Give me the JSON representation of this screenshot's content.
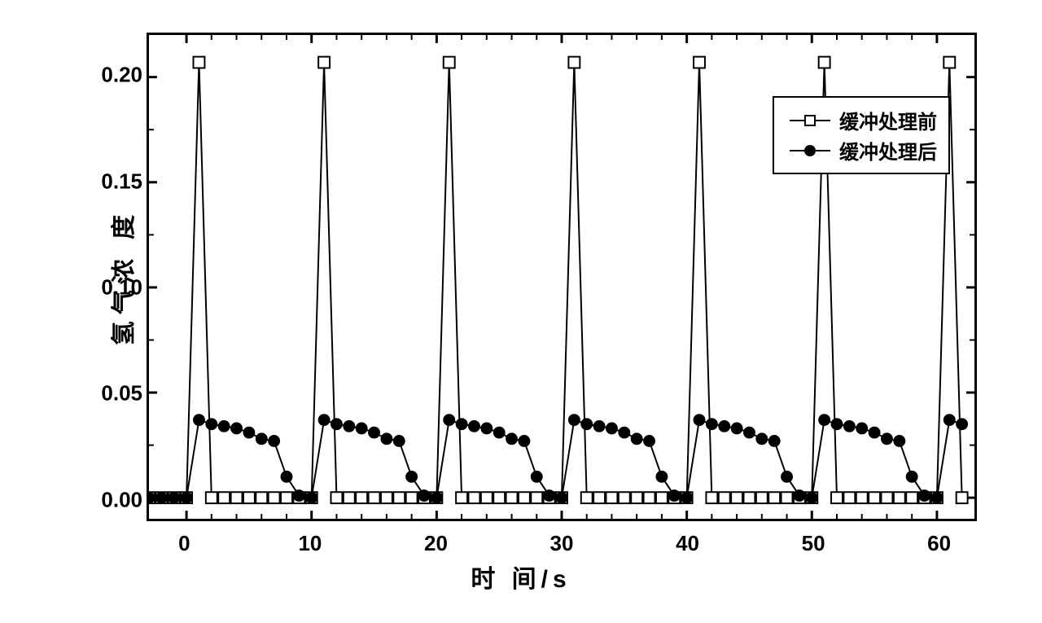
{
  "chart": {
    "type": "line",
    "title": "",
    "xlabel": "时 间/s",
    "ylabel": "氢气浓 度",
    "label_fontsize": 30,
    "tick_fontsize": 26,
    "xlim": [
      -3,
      63
    ],
    "ylim": [
      -0.01,
      0.22
    ],
    "xticks": [
      0,
      10,
      20,
      30,
      40,
      50,
      60
    ],
    "yticks": [
      0.0,
      0.05,
      0.1,
      0.15,
      0.2
    ],
    "ytick_labels": [
      "0.00",
      "0.05",
      "0.10",
      "0.15",
      "0.20"
    ],
    "xtick_labels": [
      "0",
      "10",
      "20",
      "30",
      "40",
      "50",
      "60"
    ],
    "background_color": "#ffffff",
    "axis_color": "#000000",
    "axis_width": 3,
    "tick_length_major": 10,
    "tick_length_minor": 6,
    "x_minor_step": 2,
    "y_minor_step": 0.025,
    "series": [
      {
        "name": "before_buffer",
        "label": "缓冲处理前",
        "marker": "square-open",
        "marker_size": 14,
        "marker_color": "#000000",
        "marker_fill": "#ffffff",
        "line_color": "#000000",
        "line_width": 2,
        "data": [
          [
            -3,
            0
          ],
          [
            -2,
            0
          ],
          [
            -1,
            0
          ],
          [
            0,
            0
          ],
          [
            1,
            0.207
          ],
          [
            2,
            0
          ],
          [
            3,
            0
          ],
          [
            4,
            0
          ],
          [
            5,
            0
          ],
          [
            6,
            0
          ],
          [
            7,
            0
          ],
          [
            8,
            0
          ],
          [
            9,
            0
          ],
          [
            10,
            0
          ],
          [
            11,
            0.207
          ],
          [
            12,
            0
          ],
          [
            13,
            0
          ],
          [
            14,
            0
          ],
          [
            15,
            0
          ],
          [
            16,
            0
          ],
          [
            17,
            0
          ],
          [
            18,
            0
          ],
          [
            19,
            0
          ],
          [
            20,
            0
          ],
          [
            21,
            0.207
          ],
          [
            22,
            0
          ],
          [
            23,
            0
          ],
          [
            24,
            0
          ],
          [
            25,
            0
          ],
          [
            26,
            0
          ],
          [
            27,
            0
          ],
          [
            28,
            0
          ],
          [
            29,
            0
          ],
          [
            30,
            0
          ],
          [
            31,
            0.207
          ],
          [
            32,
            0
          ],
          [
            33,
            0
          ],
          [
            34,
            0
          ],
          [
            35,
            0
          ],
          [
            36,
            0
          ],
          [
            37,
            0
          ],
          [
            38,
            0
          ],
          [
            39,
            0
          ],
          [
            40,
            0
          ],
          [
            41,
            0.207
          ],
          [
            42,
            0
          ],
          [
            43,
            0
          ],
          [
            44,
            0
          ],
          [
            45,
            0
          ],
          [
            46,
            0
          ],
          [
            47,
            0
          ],
          [
            48,
            0
          ],
          [
            49,
            0
          ],
          [
            50,
            0
          ],
          [
            51,
            0.207
          ],
          [
            52,
            0
          ],
          [
            53,
            0
          ],
          [
            54,
            0
          ],
          [
            55,
            0
          ],
          [
            56,
            0
          ],
          [
            57,
            0
          ],
          [
            58,
            0
          ],
          [
            59,
            0
          ],
          [
            60,
            0
          ],
          [
            61,
            0.207
          ],
          [
            62,
            0
          ]
        ]
      },
      {
        "name": "after_buffer",
        "label": "缓冲处理后",
        "marker": "circle-filled",
        "marker_size": 14,
        "marker_color": "#000000",
        "marker_fill": "#000000",
        "line_color": "#000000",
        "line_width": 2,
        "data": [
          [
            -3,
            0
          ],
          [
            -2,
            0
          ],
          [
            -1,
            0
          ],
          [
            0,
            0
          ],
          [
            1,
            0.037
          ],
          [
            2,
            0.035
          ],
          [
            3,
            0.034
          ],
          [
            4,
            0.033
          ],
          [
            5,
            0.031
          ],
          [
            6,
            0.028
          ],
          [
            7,
            0.027
          ],
          [
            8,
            0.01
          ],
          [
            9,
            0.001
          ],
          [
            10,
            0
          ],
          [
            11,
            0.037
          ],
          [
            12,
            0.035
          ],
          [
            13,
            0.034
          ],
          [
            14,
            0.033
          ],
          [
            15,
            0.031
          ],
          [
            16,
            0.028
          ],
          [
            17,
            0.027
          ],
          [
            18,
            0.01
          ],
          [
            19,
            0.001
          ],
          [
            20,
            0
          ],
          [
            21,
            0.037
          ],
          [
            22,
            0.035
          ],
          [
            23,
            0.034
          ],
          [
            24,
            0.033
          ],
          [
            25,
            0.031
          ],
          [
            26,
            0.028
          ],
          [
            27,
            0.027
          ],
          [
            28,
            0.01
          ],
          [
            29,
            0.001
          ],
          [
            30,
            0
          ],
          [
            31,
            0.037
          ],
          [
            32,
            0.035
          ],
          [
            33,
            0.034
          ],
          [
            34,
            0.033
          ],
          [
            35,
            0.031
          ],
          [
            36,
            0.028
          ],
          [
            37,
            0.027
          ],
          [
            38,
            0.01
          ],
          [
            39,
            0.001
          ],
          [
            40,
            0
          ],
          [
            41,
            0.037
          ],
          [
            42,
            0.035
          ],
          [
            43,
            0.034
          ],
          [
            44,
            0.033
          ],
          [
            45,
            0.031
          ],
          [
            46,
            0.028
          ],
          [
            47,
            0.027
          ],
          [
            48,
            0.01
          ],
          [
            49,
            0.001
          ],
          [
            50,
            0
          ],
          [
            51,
            0.037
          ],
          [
            52,
            0.035
          ],
          [
            53,
            0.034
          ],
          [
            54,
            0.033
          ],
          [
            55,
            0.031
          ],
          [
            56,
            0.028
          ],
          [
            57,
            0.027
          ],
          [
            58,
            0.01
          ],
          [
            59,
            0.001
          ],
          [
            60,
            0
          ],
          [
            61,
            0.037
          ],
          [
            62,
            0.035
          ]
        ]
      }
    ],
    "legend": {
      "position": "upper-right",
      "border_color": "#000000",
      "border_width": 2,
      "background": "#ffffff",
      "fontsize": 24
    }
  }
}
